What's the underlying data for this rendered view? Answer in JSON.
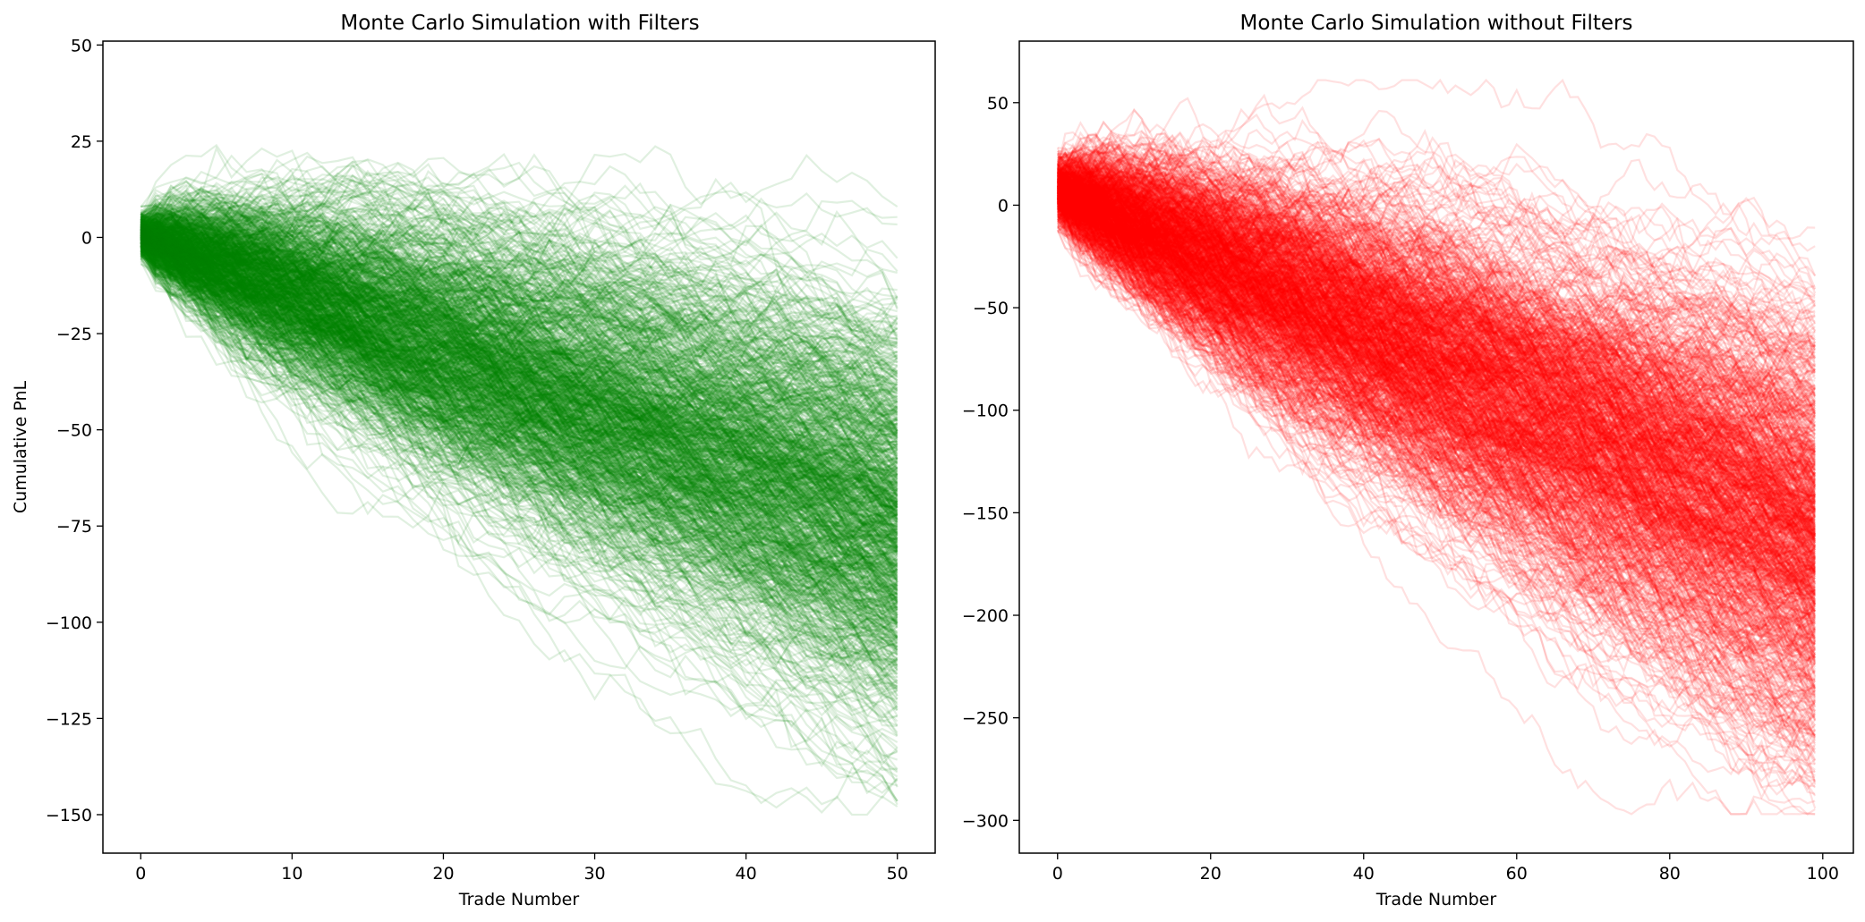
{
  "chart_data": [
    {
      "type": "line",
      "title": "Monte Carlo Simulation with Filters",
      "xlabel": "Trade Number",
      "ylabel": "Cumulative PnL",
      "xlim": [
        -2.5,
        52.5
      ],
      "ylim": [
        -160,
        51
      ],
      "xticks": [
        0,
        10,
        20,
        30,
        40,
        50
      ],
      "xtick_labels": [
        "0",
        "10",
        "20",
        "30",
        "40",
        "50"
      ],
      "yticks": [
        50,
        25,
        0,
        -25,
        -50,
        -75,
        -100,
        -125,
        -150
      ],
      "ytick_labels": [
        "50",
        "25",
        "0",
        "−25",
        "−50",
        "−75",
        "−100",
        "−125",
        "−150"
      ],
      "color": "#008000",
      "line_alpha": 0.12,
      "grid": false,
      "simulation": {
        "paths": 1000,
        "trades": 50,
        "start_value": 0,
        "start_range": [
          -7,
          8
        ],
        "final_value_median": -75,
        "final_value_range": [
          -150,
          10
        ],
        "max_value": 41,
        "min_value": -150
      }
    },
    {
      "type": "line",
      "title": "Monte Carlo Simulation without Filters",
      "xlabel": "Trade Number",
      "ylabel": "",
      "xlim": [
        -5,
        104
      ],
      "ylim": [
        -316,
        80
      ],
      "xticks": [
        0,
        20,
        40,
        60,
        80,
        100
      ],
      "xtick_labels": [
        "0",
        "20",
        "40",
        "60",
        "80",
        "100"
      ],
      "yticks": [
        50,
        0,
        -50,
        -100,
        -150,
        -200,
        -250,
        -300
      ],
      "ytick_labels": [
        "50",
        "0",
        "−50",
        "−100",
        "−150",
        "−200",
        "−250",
        "−300"
      ],
      "color": "#ff0000",
      "line_alpha": 0.12,
      "grid": false,
      "simulation": {
        "paths": 1000,
        "trades": 99,
        "start_value": 0,
        "start_range": [
          -13,
          28
        ],
        "final_value_median": -170,
        "final_value_range": [
          -297,
          5
        ],
        "max_value": 61,
        "min_value": -297
      }
    }
  ]
}
